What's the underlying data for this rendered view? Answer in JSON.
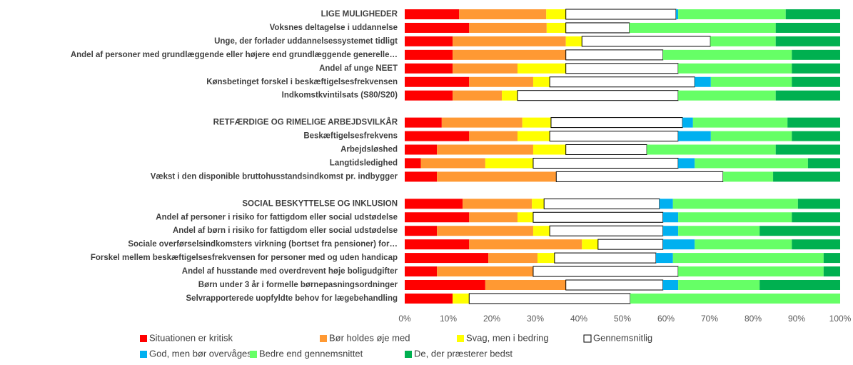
{
  "chart_data": {
    "type": "stacked_barh",
    "categories": [
      "LIGE MULIGHEDER",
      "Voksnes deltagelse i uddannelse",
      "Unge, der forlader uddannelsessystemet tidligt",
      "Andel af personer med grundlæggende eller højere end grundlæggende generelle…",
      "Andel af unge NEET",
      "Kønsbetinget forskel i beskæftigelsesfrekvensen",
      "Indkomstkvintilsats (S80/S20)",
      null,
      "RETFÆRDIGE OG RIMELIGE ARBEJDSVILKÅR",
      "Beskæftigelsesfrekvens",
      "Arbejdsløshed",
      "Langtidsledighed",
      "Vækst i den disponible bruttohusstandsindkomst pr. indbygger",
      null,
      "SOCIAL BESKYTTELSE OG INKLUSION",
      "Andel af personer i risiko for fattigdom eller social udstødelse",
      "Andel af børn i risiko for fattigdom eller social udstødelse",
      "Sociale overførselsindkomsters virkning (bortset fra pensioner) for…",
      "Forskel mellem beskæftigelsesfrekvensen for personer med og uden handicap",
      "Andel af husstande med overdrevent høje boligudgifter",
      "Børn under 3 år i formelle børnepasningsordninger",
      "Selvrapporterede uopfyldte behov for lægebehandling"
    ],
    "series": [
      {
        "name": "Situationen er kritisk",
        "color": "#ff0000",
        "values": [
          12.5,
          14.8,
          11,
          11,
          11,
          14.8,
          11,
          null,
          8.5,
          14.8,
          7.4,
          3.7,
          7.4,
          null,
          13.3,
          14.8,
          7.4,
          14.8,
          19.2,
          7.4,
          18.5,
          11
        ]
      },
      {
        "name": "Bør holdes øje med",
        "color": "#ff9933",
        "values": [
          20,
          17.8,
          26,
          26,
          14.9,
          14.7,
          11.3,
          null,
          18.5,
          11.1,
          22.1,
          14.8,
          27.4,
          null,
          15.9,
          11.1,
          22.1,
          25.9,
          11.3,
          22.1,
          18.5,
          0
        ]
      },
      {
        "name": "Svag, men i bedring",
        "color": "#ffff00",
        "values": [
          4.5,
          4.4,
          3.7,
          0,
          11.1,
          3.8,
          3.6,
          null,
          6.6,
          7.4,
          7.5,
          11,
          0,
          null,
          2.8,
          3.6,
          3.8,
          3.7,
          3.9,
          0,
          0,
          3.8
        ]
      },
      {
        "name": "Gennemsnitlig",
        "color": "#ffffff",
        "values": [
          25.3,
          14.6,
          29.5,
          22.3,
          25.8,
          33.3,
          36.9,
          null,
          30.2,
          29.5,
          18.6,
          33.3,
          38.3,
          null,
          26.5,
          29.8,
          26,
          14.9,
          23.3,
          33.3,
          22.3,
          37
        ]
      },
      {
        "name": "God, men bør overvåges",
        "color": "#00b0f0",
        "values": [
          0.5,
          0,
          0,
          0,
          0,
          3.7,
          0,
          null,
          2.4,
          7.5,
          0,
          3.8,
          0,
          null,
          3.1,
          3.5,
          3.5,
          7.3,
          3.9,
          0,
          3.5,
          0
        ]
      },
      {
        "name": "Bedre end gennemsnittet",
        "color": "#66ff66",
        "values": [
          24.7,
          33.6,
          15,
          29.6,
          26.1,
          18.6,
          22.4,
          null,
          21.7,
          18.6,
          29.6,
          26,
          11.5,
          null,
          28.7,
          26.1,
          18.7,
          22.3,
          34.6,
          33.4,
          18.7,
          48.2
        ]
      },
      {
        "name": "De, der præsterer bedst",
        "color": "#00b050",
        "values": [
          12.5,
          14.8,
          14.8,
          11.1,
          11.1,
          11.1,
          14.8,
          null,
          12.1,
          11.1,
          14.8,
          7.4,
          15.4,
          null,
          9.7,
          11.1,
          18.5,
          11.1,
          3.8,
          3.8,
          18.5,
          0
        ]
      }
    ],
    "xlim": [
      0,
      100
    ],
    "xticks": [
      {
        "value": 0,
        "label": "0%"
      },
      {
        "value": 10,
        "label": "10%"
      },
      {
        "value": 20,
        "label": "20%"
      },
      {
        "value": 30,
        "label": "30%"
      },
      {
        "value": 40,
        "label": "40%"
      },
      {
        "value": 50,
        "label": "50%"
      },
      {
        "value": 60,
        "label": "60%"
      },
      {
        "value": 70,
        "label": "70%"
      },
      {
        "value": 80,
        "label": "80%"
      },
      {
        "value": 90,
        "label": "90%"
      },
      {
        "value": 100,
        "label": "100%"
      }
    ]
  }
}
